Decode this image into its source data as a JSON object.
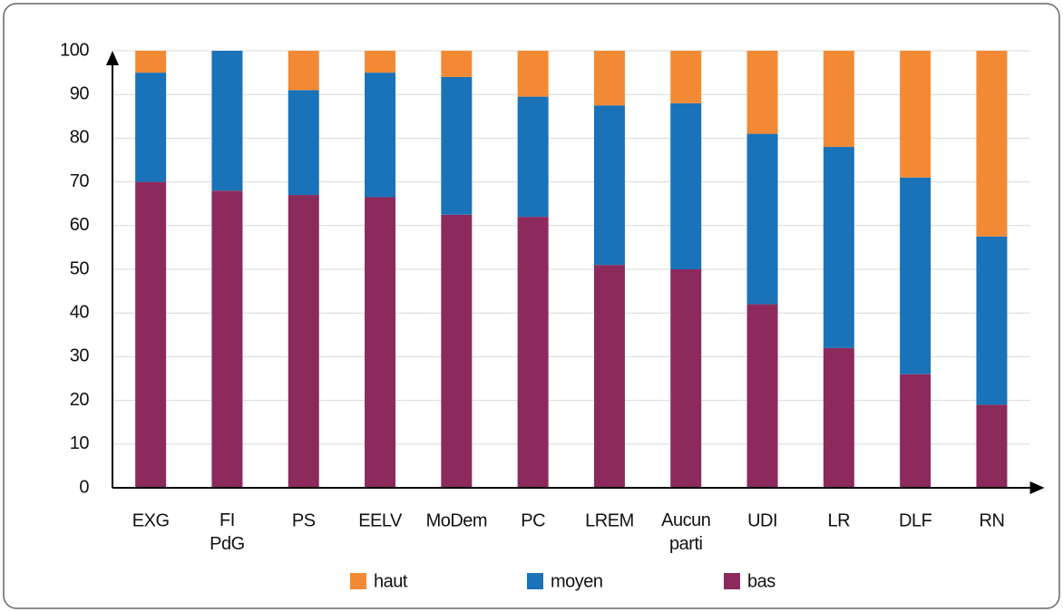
{
  "chart_data": {
    "type": "stacked_bar",
    "categories": [
      "EXG",
      "FI PdG",
      "PS",
      "EELV",
      "MoDem",
      "PC",
      "LREM",
      "Aucun parti",
      "UDI",
      "LR",
      "DLF",
      "RN"
    ],
    "series": [
      {
        "name": "bas",
        "color": "#8c2a5c",
        "values": [
          70,
          68,
          67,
          66.5,
          62.5,
          62,
          51,
          50,
          42,
          32,
          26,
          19
        ]
      },
      {
        "name": "moyen",
        "color": "#1a72b9",
        "values": [
          25,
          32,
          24,
          28.5,
          31.5,
          27.5,
          36.5,
          38,
          39,
          46,
          45,
          38.5
        ]
      },
      {
        "name": "haut",
        "color": "#f28a35",
        "values": [
          5,
          0,
          9,
          5,
          6,
          10.5,
          12.5,
          12,
          19,
          22,
          29,
          42.5
        ]
      }
    ],
    "ylim": [
      0,
      100
    ],
    "yticks": [
      0,
      10,
      20,
      30,
      40,
      50,
      60,
      70,
      80,
      90,
      100
    ],
    "grid": true
  }
}
